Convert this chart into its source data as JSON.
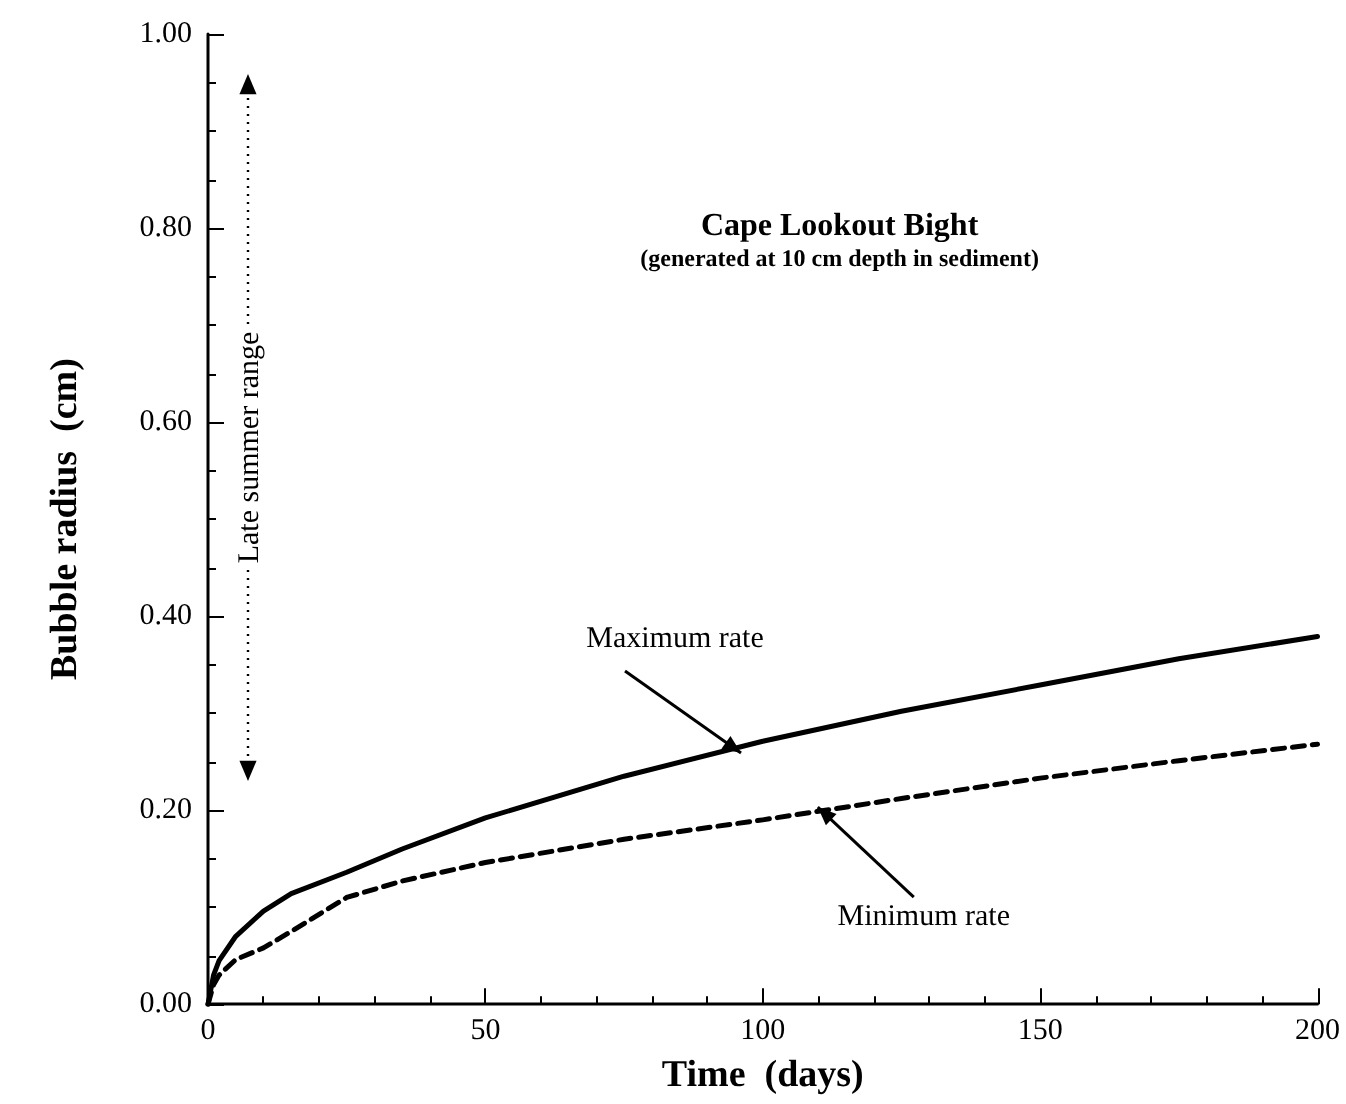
{
  "chart_data": {
    "type": "line",
    "title": "Cape Lookout Bight",
    "subtitle": "(generated at 10 cm depth in sediment)",
    "xlabel": "Time  (days)",
    "ylabel": "Bubble radius  (cm)",
    "x": [
      0,
      1,
      2,
      5,
      10,
      15,
      25,
      35,
      50,
      75,
      100,
      125,
      150,
      175,
      200
    ],
    "series": [
      {
        "color": "#000000",
        "line_style": "solid",
        "values": [
          0,
          0.03,
          0.045,
          0.07,
          0.096,
          0.114,
          0.136,
          0.16,
          0.192,
          0.235,
          0.271,
          0.302,
          0.329,
          0.356,
          0.379
        ]
      },
      {
        "color": "#000000",
        "line_style": "dashed",
        "values": [
          0,
          0.02,
          0.03,
          0.046,
          0.058,
          0.075,
          0.11,
          0.127,
          0.146,
          0.17,
          0.19,
          0.212,
          0.233,
          0.251,
          0.268
        ]
      }
    ],
    "xlim": [
      0,
      200
    ],
    "xticks": [
      0,
      50,
      100,
      150,
      200
    ],
    "ylim": [
      0,
      1
    ],
    "yticks": [
      {
        "value": 0,
        "label": "0.00"
      },
      {
        "value": 0.2,
        "label": "0.20"
      },
      {
        "value": 0.4,
        "label": "0.40"
      },
      {
        "value": 0.6,
        "label": "0.60"
      },
      {
        "value": 0.8,
        "label": "0.80"
      },
      {
        "value": 1,
        "label": "1.00"
      }
    ],
    "annotations": [
      {
        "text": "Maximum rate",
        "x": 95,
        "y": 0.265
      },
      {
        "text": "Minimum rate",
        "x": 111,
        "y": 0.197
      },
      "Late summer range"
    ],
    "grid": false,
    "marker": "none"
  }
}
